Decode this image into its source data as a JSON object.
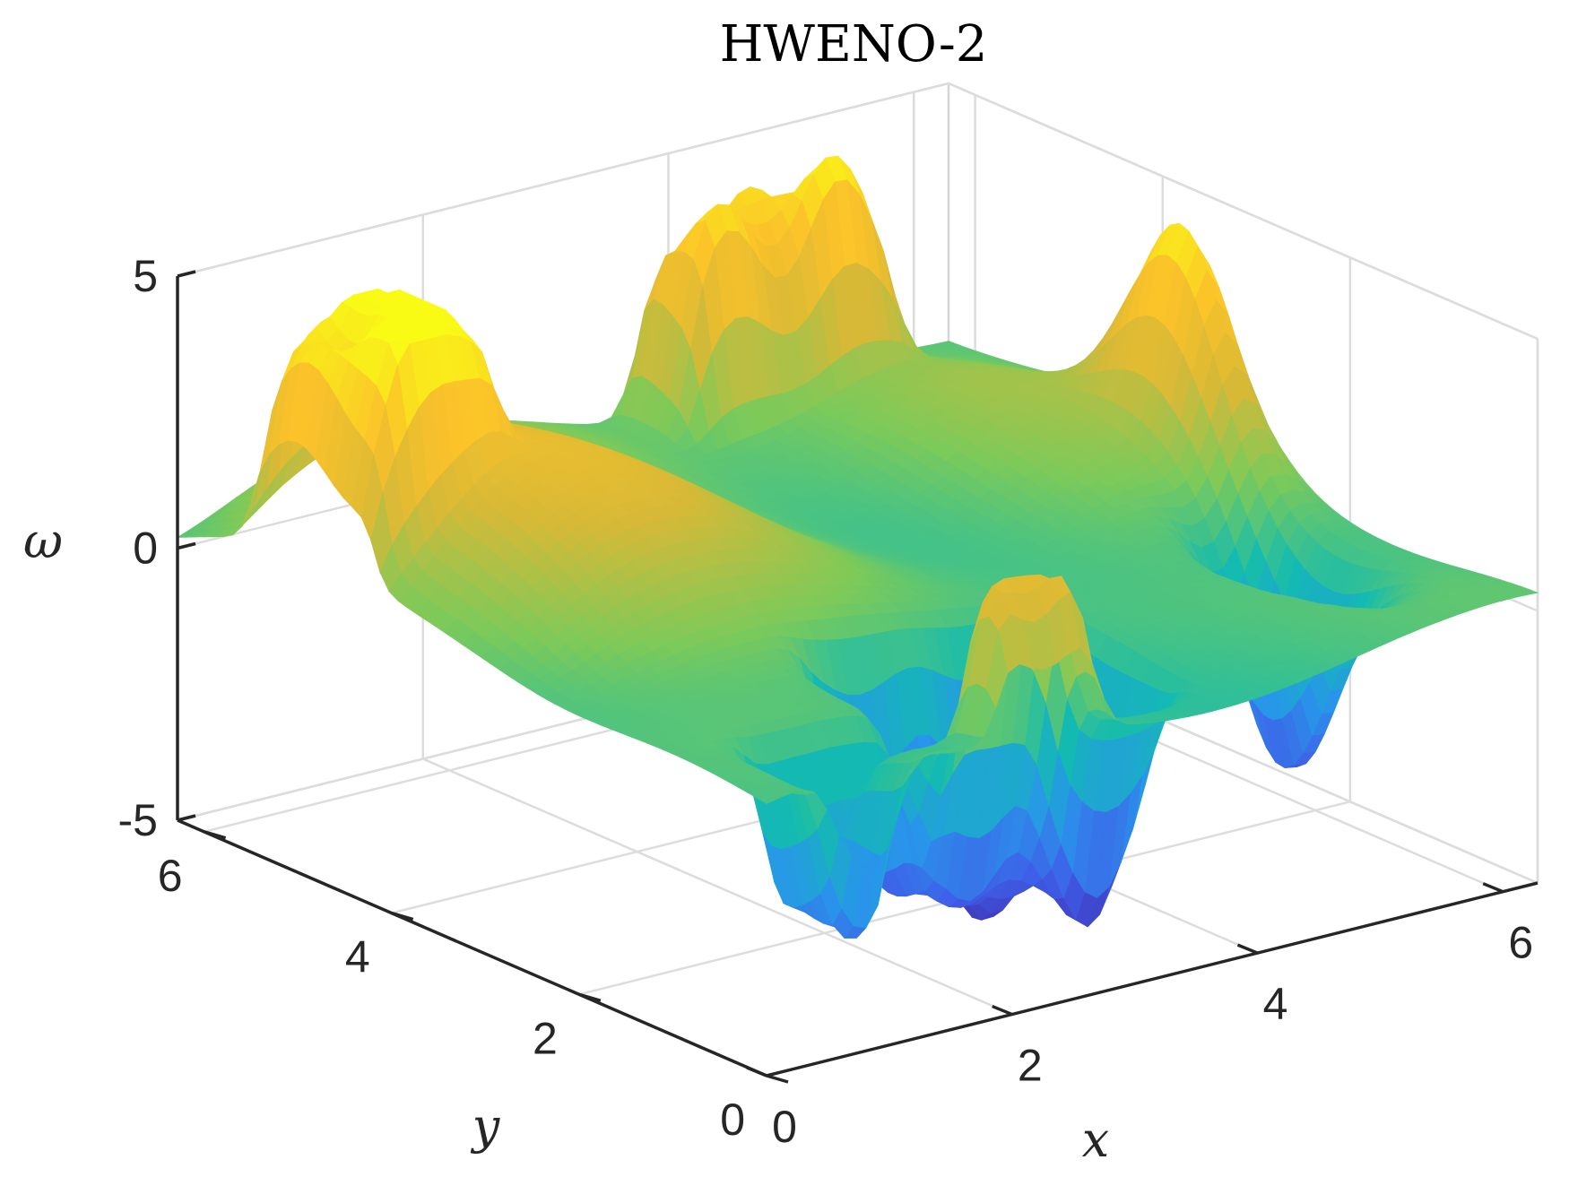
{
  "chart_data": {
    "type": "surface",
    "title": "HWENO-2",
    "xlabel": "x",
    "ylabel": "y",
    "zlabel": "ω",
    "xlim": [
      0,
      6.2832
    ],
    "ylim": [
      0,
      6.2832
    ],
    "zlim": [
      -5,
      5
    ],
    "x_ticks": [
      {
        "value": 0,
        "label": "0"
      },
      {
        "value": 2,
        "label": "2"
      },
      {
        "value": 4,
        "label": "4"
      },
      {
        "value": 6,
        "label": "6"
      }
    ],
    "y_ticks": [
      {
        "value": 0,
        "label": "0"
      },
      {
        "value": 2,
        "label": "2"
      },
      {
        "value": 4,
        "label": "4"
      },
      {
        "value": 6,
        "label": "6"
      }
    ],
    "z_ticks": [
      {
        "value": -5,
        "label": "-5"
      },
      {
        "value": 0,
        "label": "0"
      },
      {
        "value": 5,
        "label": "5"
      }
    ],
    "grid": true,
    "colormap": "parula",
    "colormap_stops": [
      "#3e26a8",
      "#3f5fe8",
      "#2896ea",
      "#13bbb0",
      "#7cca5a",
      "#d6b937",
      "#fbc22a",
      "#f9fb15"
    ],
    "surface": {
      "description_free_values": true,
      "base_level": 0,
      "features": [
        {
          "kind": "plateau",
          "x_range": [
            3.7,
            5.4
          ],
          "y_range": [
            5.6,
            6.28
          ],
          "z": 4.5
        },
        {
          "kind": "plateau",
          "x_range": [
            0.0,
            1.05
          ],
          "y_range": [
            4.2,
            5.5
          ],
          "z": 4.0
        },
        {
          "kind": "plateau",
          "x_range": [
            1.1,
            2.7
          ],
          "y_range": [
            0.0,
            0.7
          ],
          "z": 3.5
        },
        {
          "kind": "well",
          "x_range": [
            1.8,
            3.6
          ],
          "y_range": [
            0.5,
            1.9
          ],
          "z": -4.5
        },
        {
          "kind": "well",
          "x_range": [
            0.5,
            1.9
          ],
          "y_range": [
            0.0,
            0.8
          ],
          "z": -4.0
        },
        {
          "kind": "ridge",
          "x_range": [
            0.2,
            5.6
          ],
          "y_range": [
            2.6,
            6.28
          ],
          "z": 3.0
        },
        {
          "kind": "spike",
          "x": 6.0,
          "y": 3.4,
          "z": 3.8
        },
        {
          "kind": "spike",
          "x": 5.55,
          "y": 1.7,
          "z": -4.0
        }
      ]
    }
  }
}
